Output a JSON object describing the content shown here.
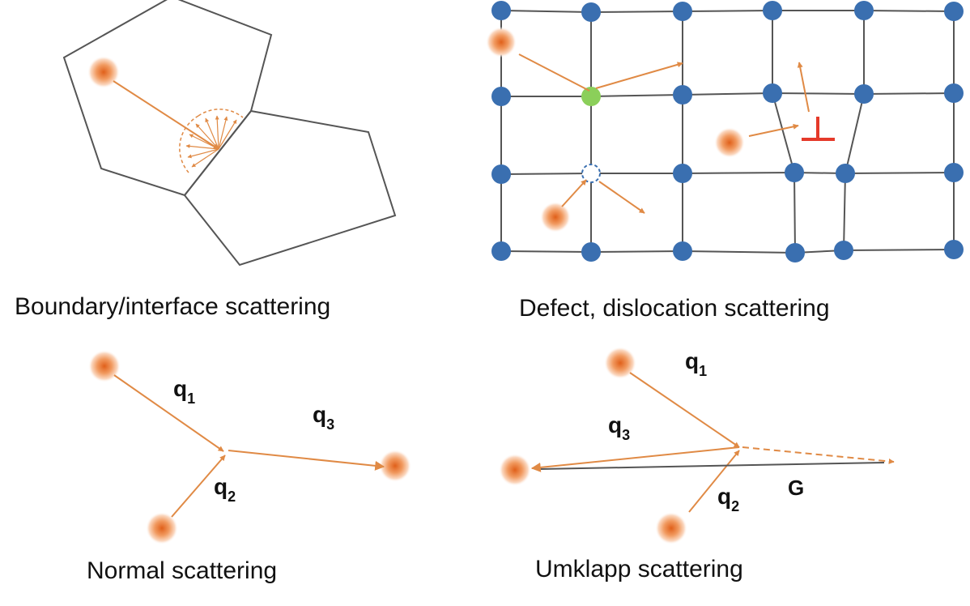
{
  "panels": {
    "boundary": {
      "caption": "Boundary/interface scattering"
    },
    "defect": {
      "caption": "Defect, dislocation scattering",
      "dislocation_symbol": "⊥"
    },
    "normal": {
      "caption": "Normal scattering",
      "q1": "q",
      "q1_sub": "1",
      "q2": "q",
      "q2_sub": "2",
      "q3": "q",
      "q3_sub": "3"
    },
    "umklapp": {
      "caption": "Umklapp scattering",
      "q1": "q",
      "q1_sub": "1",
      "q2": "q",
      "q2_sub": "2",
      "q3": "q",
      "q3_sub": "3",
      "g_label": "G"
    }
  },
  "colors": {
    "line": "#555555",
    "arrow": "#e08a45",
    "lattice_atom": "#3a6fb0",
    "impurity_atom": "#8bcf5a",
    "dislocation": "#e53a2a"
  },
  "icons": {
    "phonon": "phonon-particle-icon",
    "atom": "lattice-atom-icon"
  }
}
